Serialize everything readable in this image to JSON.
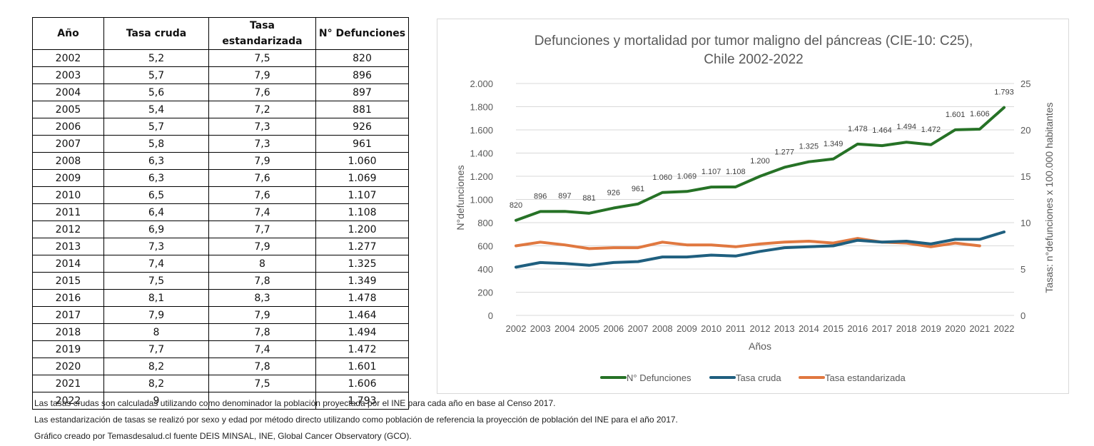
{
  "table": {
    "headers": [
      "Año",
      "Tasa cruda",
      "Tasa estandarizada",
      "N° Defunciones"
    ],
    "rows": [
      [
        "2002",
        "5,2",
        "7,5",
        "820"
      ],
      [
        "2003",
        "5,7",
        "7,9",
        "896"
      ],
      [
        "2004",
        "5,6",
        "7,6",
        "897"
      ],
      [
        "2005",
        "5,4",
        "7,2",
        "881"
      ],
      [
        "2006",
        "5,7",
        "7,3",
        "926"
      ],
      [
        "2007",
        "5,8",
        "7,3",
        "961"
      ],
      [
        "2008",
        "6,3",
        "7,9",
        "1.060"
      ],
      [
        "2009",
        "6,3",
        "7,6",
        "1.069"
      ],
      [
        "2010",
        "6,5",
        "7,6",
        "1.107"
      ],
      [
        "2011",
        "6,4",
        "7,4",
        "1.108"
      ],
      [
        "2012",
        "6,9",
        "7,7",
        "1.200"
      ],
      [
        "2013",
        "7,3",
        "7,9",
        "1.277"
      ],
      [
        "2014",
        "7,4",
        "8",
        "1.325"
      ],
      [
        "2015",
        "7,5",
        "7,8",
        "1.349"
      ],
      [
        "2016",
        "8,1",
        "8,3",
        "1.478"
      ],
      [
        "2017",
        "7,9",
        "7,9",
        "1.464"
      ],
      [
        "2018",
        "8",
        "7,8",
        "1.494"
      ],
      [
        "2019",
        "7,7",
        "7,4",
        "1.472"
      ],
      [
        "2020",
        "8,2",
        "7,8",
        "1.601"
      ],
      [
        "2021",
        "8,2",
        "7,5",
        "1.606"
      ],
      [
        "2022",
        "9",
        "",
        "1.793"
      ]
    ]
  },
  "notes": [
    "Las tasas crudas son calculadas utilizando como denominador la población proyectada  por el INE para cada año en base al Censo 2017.",
    "Las estandarización de tasas  se realizó por sexo y edad por método directo utilizando como población de referencia la proyección de población del INE para el año 2017.",
    "Gráfico creado por Temasdesalud.cl fuente DEIS MINSAL, INE, Global Cancer Observatory (GCO)."
  ],
  "chart_data": {
    "type": "line",
    "title": [
      "Defunciones y mortalidad por tumor maligno del páncreas (CIE-10: C25),",
      "Chile 2002-2022"
    ],
    "xlabel": "Años",
    "ylabel": "N°defunciones",
    "y2label": "Tasas: n°defunciones x 100.000 habitantes",
    "x": [
      "2002",
      "2003",
      "2004",
      "2005",
      "2006",
      "2007",
      "2008",
      "2009",
      "2010",
      "2011",
      "2012",
      "2013",
      "2014",
      "2015",
      "2016",
      "2017",
      "2018",
      "2019",
      "2020",
      "2021",
      "2022"
    ],
    "ylim": [
      0,
      2000
    ],
    "y_ticks": [
      "0",
      "200",
      "400",
      "600",
      "800",
      "1.000",
      "1.200",
      "1.400",
      "1.600",
      "1.800",
      "2.000"
    ],
    "y2lim": [
      0,
      25
    ],
    "y2_ticks": [
      "0",
      "5",
      "10",
      "15",
      "20",
      "25"
    ],
    "grid": true,
    "legend_position": "bottom",
    "series": [
      {
        "name": "N° Defunciones",
        "axis": "left",
        "color": "#267226",
        "values": [
          820,
          896,
          897,
          881,
          926,
          961,
          1060,
          1069,
          1107,
          1108,
          1200,
          1277,
          1325,
          1349,
          1478,
          1464,
          1494,
          1472,
          1601,
          1606,
          1793
        ],
        "labels": [
          "820",
          "896",
          "897",
          "881",
          "926",
          "961",
          "1.060",
          "1.069",
          "1.107",
          "1.108",
          "1.200",
          "1.277",
          "1.325",
          "1.349",
          "1.478",
          "1.464",
          "1.494",
          "1.472",
          "1.601",
          "1.606",
          "1.793"
        ]
      },
      {
        "name": "Tasa cruda",
        "axis": "right",
        "color": "#1f5f7f",
        "values": [
          5.2,
          5.7,
          5.6,
          5.4,
          5.7,
          5.8,
          6.3,
          6.3,
          6.5,
          6.4,
          6.9,
          7.3,
          7.4,
          7.5,
          8.1,
          7.9,
          8.0,
          7.7,
          8.2,
          8.2,
          9.0
        ]
      },
      {
        "name": "Tasa estandarizada",
        "axis": "right",
        "color": "#e07840",
        "values": [
          7.5,
          7.9,
          7.6,
          7.2,
          7.3,
          7.3,
          7.9,
          7.6,
          7.6,
          7.4,
          7.7,
          7.9,
          8.0,
          7.8,
          8.3,
          7.9,
          7.8,
          7.4,
          7.8,
          7.5,
          null
        ]
      }
    ]
  }
}
